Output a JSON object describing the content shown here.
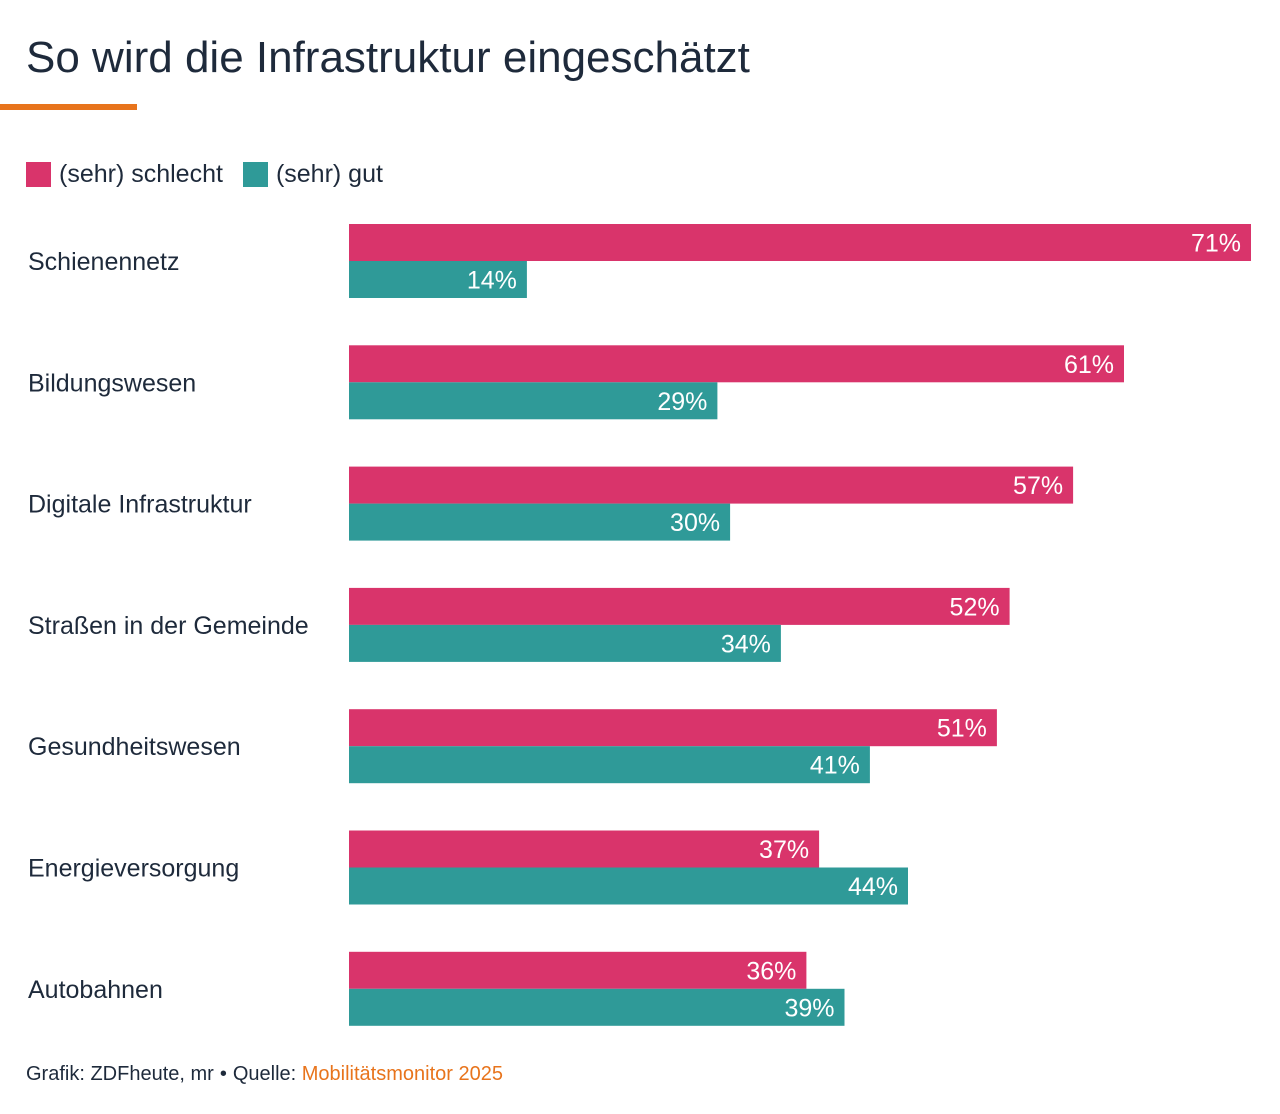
{
  "title": "So wird die Infrastruktur eingeschätzt",
  "colors": {
    "accent": "#e8741c",
    "schlecht": "#d9346b",
    "gut": "#2f9a98",
    "text": "#1e2a3b"
  },
  "legend": {
    "schlecht_label": "(sehr) schlecht",
    "gut_label": "(sehr) gut"
  },
  "source": {
    "prefix": "Grafik: ZDFheute, mr",
    "separator": "•",
    "quelle_label": "Quelle:",
    "quelle_value": "Mobilitätsmonitor 2025"
  },
  "chart_data": {
    "type": "bar",
    "orientation": "horizontal",
    "title": "So wird die Infrastruktur eingeschätzt",
    "xlabel": "",
    "ylabel": "",
    "xlim": [
      0,
      71
    ],
    "grid": false,
    "legend_position": "top-left",
    "value_suffix": "%",
    "categories": [
      "Schienennetz",
      "Bildungswesen",
      "Digitale Infrastruktur",
      "Straßen in der Gemeinde",
      "Gesundheitswesen",
      "Energieversorgung",
      "Autobahnen"
    ],
    "series": [
      {
        "name": "(sehr) schlecht",
        "color": "#d9346b",
        "values": [
          71,
          61,
          57,
          52,
          51,
          37,
          36
        ]
      },
      {
        "name": "(sehr) gut",
        "color": "#2f9a98",
        "values": [
          14,
          29,
          30,
          34,
          41,
          44,
          39
        ]
      }
    ]
  }
}
